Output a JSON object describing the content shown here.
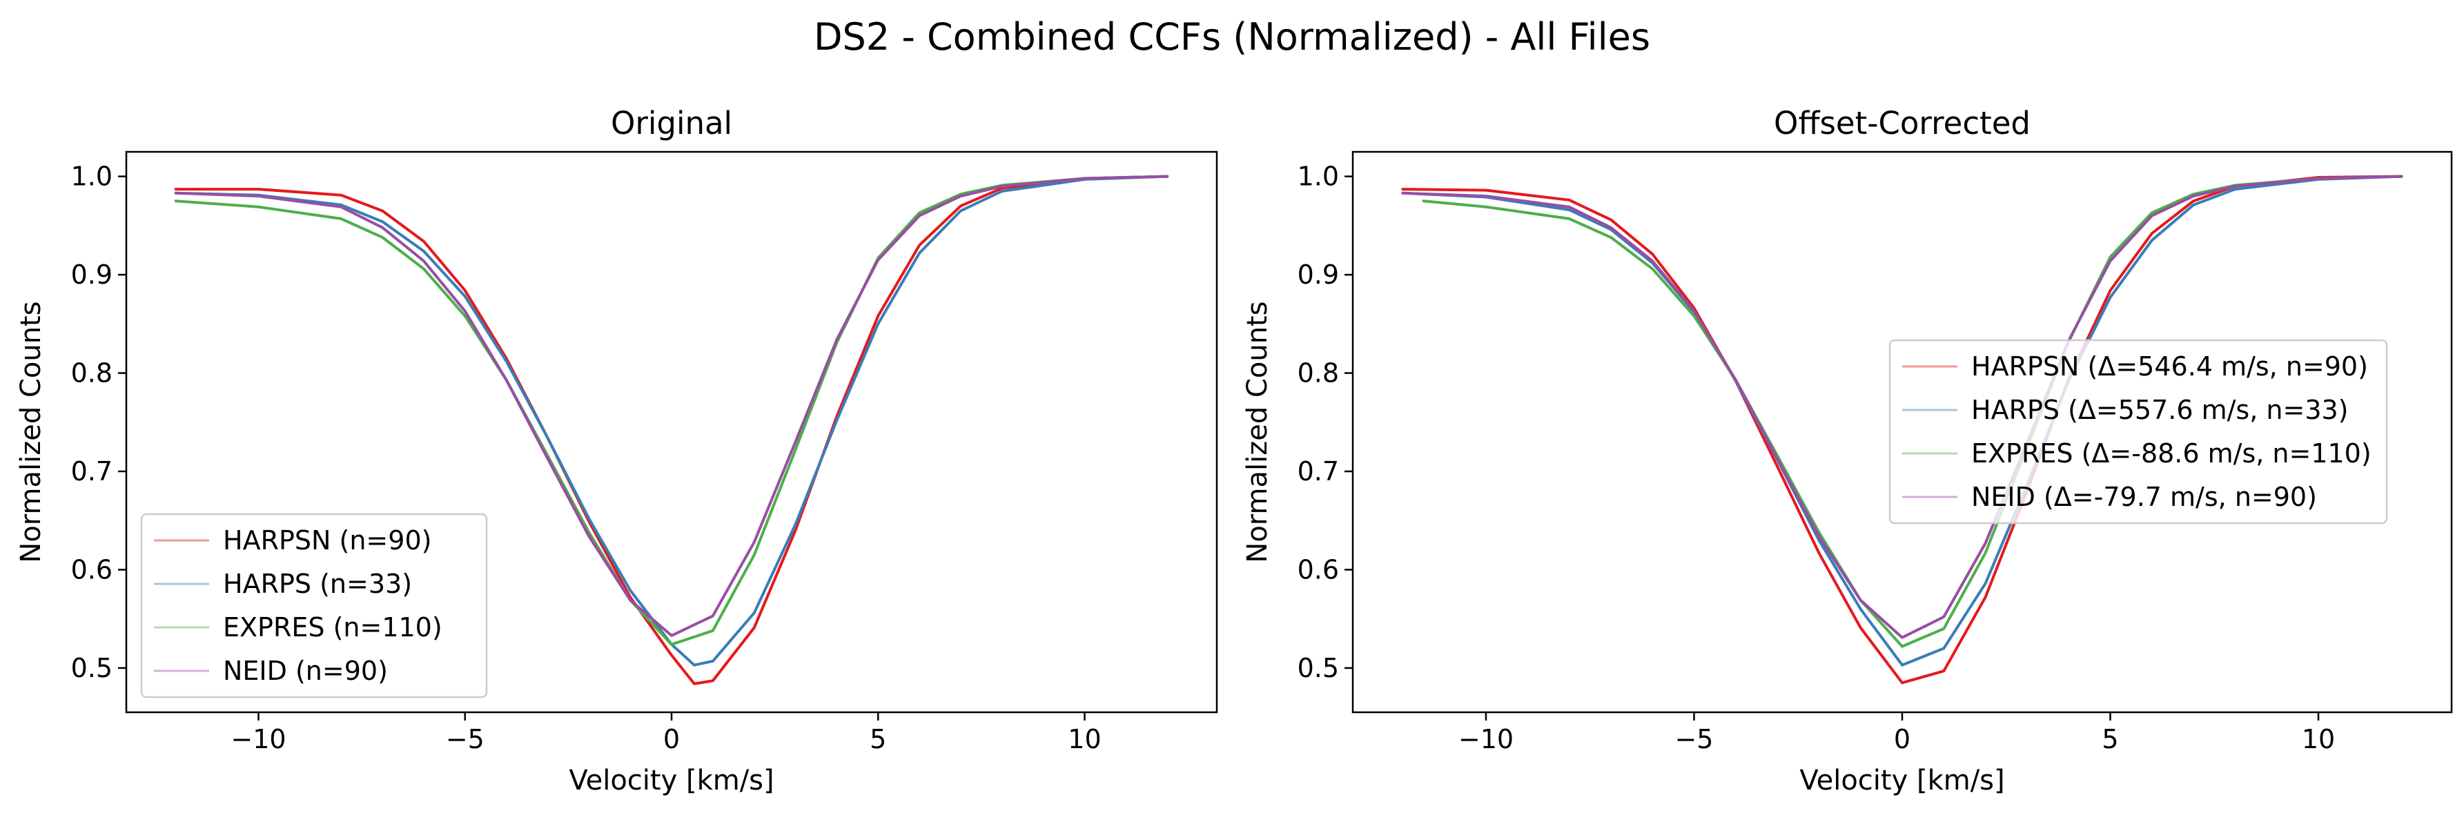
{
  "suptitle": "DS2 - Combined CCFs (Normalized) - All Files",
  "chart_data": [
    {
      "type": "line",
      "title": "Original",
      "xlabel": "Velocity [km/s]",
      "ylabel": "Normalized Counts",
      "xlim": [
        -13.2,
        13.2
      ],
      "ylim": [
        0.455,
        1.025
      ],
      "xticks": [
        -10,
        -5,
        0,
        5,
        10
      ],
      "xtick_labels": [
        "−10",
        "−5",
        "0",
        "5",
        "10"
      ],
      "yticks": [
        0.5,
        0.6,
        0.7,
        0.8,
        0.9,
        1.0
      ],
      "ytick_labels": [
        "0.5",
        "0.6",
        "0.7",
        "0.8",
        "0.9",
        "1.0"
      ],
      "grid": false,
      "legend_position": "lower-left",
      "series": [
        {
          "name": "HARPSN (n=90)",
          "color": "#e41a1c",
          "x": [
            -12,
            -10,
            -8,
            -7,
            -6,
            -5,
            -4,
            -3,
            -2,
            -1,
            0,
            0.55,
            1,
            2,
            3,
            4,
            5,
            6,
            7,
            8,
            10,
            12
          ],
          "y": [
            0.987,
            0.987,
            0.981,
            0.965,
            0.934,
            0.884,
            0.815,
            0.734,
            0.649,
            0.572,
            0.513,
            0.484,
            0.487,
            0.541,
            0.64,
            0.756,
            0.858,
            0.93,
            0.97,
            0.988,
            0.998,
            1.0
          ]
        },
        {
          "name": "HARPS (n=33)",
          "color": "#377eb8",
          "x": [
            -12,
            -10,
            -8,
            -7,
            -6,
            -5,
            -4,
            -3,
            -2,
            -1,
            0,
            0.55,
            1,
            2,
            3,
            4,
            5,
            6,
            7,
            8,
            10,
            12
          ],
          "y": [
            0.983,
            0.981,
            0.971,
            0.954,
            0.924,
            0.878,
            0.812,
            0.734,
            0.652,
            0.579,
            0.524,
            0.503,
            0.507,
            0.556,
            0.646,
            0.752,
            0.85,
            0.922,
            0.965,
            0.985,
            0.997,
            1.0
          ]
        },
        {
          "name": "EXPRES (n=110)",
          "color": "#4daf4a",
          "x": [
            -12,
            -10,
            -8,
            -7,
            -6,
            -5,
            -4,
            -3,
            -2,
            -1,
            0,
            1,
            2,
            3,
            4,
            5,
            6,
            7,
            8,
            10,
            12
          ],
          "y": [
            0.975,
            0.969,
            0.957,
            0.938,
            0.906,
            0.858,
            0.793,
            0.716,
            0.638,
            0.569,
            0.524,
            0.538,
            0.615,
            0.722,
            0.831,
            0.917,
            0.963,
            0.982,
            0.991,
            0.998,
            1.0
          ]
        },
        {
          "name": "NEID (n=90)",
          "color": "#984ea3",
          "x": [
            -12,
            -10,
            -8,
            -7,
            -6,
            -5,
            -4,
            -3,
            -2,
            -1,
            0,
            1,
            2,
            3,
            4,
            5,
            6,
            7,
            8,
            10,
            12
          ],
          "y": [
            0.983,
            0.98,
            0.969,
            0.948,
            0.914,
            0.863,
            0.793,
            0.713,
            0.634,
            0.569,
            0.533,
            0.553,
            0.628,
            0.73,
            0.834,
            0.915,
            0.96,
            0.98,
            0.99,
            0.998,
            1.0
          ]
        }
      ]
    },
    {
      "type": "line",
      "title": "Offset-Corrected",
      "xlabel": "Velocity [km/s]",
      "ylabel": "Normalized Counts",
      "xlim": [
        -13.2,
        13.2
      ],
      "ylim": [
        0.455,
        1.025
      ],
      "xticks": [
        -10,
        -5,
        0,
        5,
        10
      ],
      "xtick_labels": [
        "−10",
        "−5",
        "0",
        "5",
        "10"
      ],
      "yticks": [
        0.5,
        0.6,
        0.7,
        0.8,
        0.9,
        1.0
      ],
      "ytick_labels": [
        "0.5",
        "0.6",
        "0.7",
        "0.8",
        "0.9",
        "1.0"
      ],
      "grid": false,
      "legend_position": "center-right",
      "series": [
        {
          "name": "HARPSN (Δ=546.4 m/s, n=90)",
          "color": "#e41a1c",
          "x": [
            -12,
            -10,
            -8,
            -7,
            -6,
            -5,
            -4,
            -3,
            -2,
            -1,
            0,
            1,
            2,
            3,
            4,
            5,
            6,
            7,
            8,
            10,
            12
          ],
          "y": [
            0.987,
            0.986,
            0.976,
            0.956,
            0.921,
            0.866,
            0.792,
            0.705,
            0.617,
            0.541,
            0.485,
            0.497,
            0.572,
            0.68,
            0.794,
            0.884,
            0.942,
            0.975,
            0.99,
            0.999,
            1.0
          ]
        },
        {
          "name": "HARPS (Δ=557.6 m/s, n=33)",
          "color": "#377eb8",
          "x": [
            -12,
            -10,
            -8,
            -7,
            -6,
            -5,
            -4,
            -3,
            -2,
            -1,
            0,
            1,
            2,
            3,
            4,
            5,
            6,
            7,
            8,
            10,
            12
          ],
          "y": [
            0.983,
            0.979,
            0.966,
            0.946,
            0.912,
            0.862,
            0.792,
            0.712,
            0.63,
            0.56,
            0.503,
            0.52,
            0.586,
            0.686,
            0.792,
            0.877,
            0.935,
            0.971,
            0.987,
            0.997,
            1.0
          ]
        },
        {
          "name": "EXPRES (Δ=-88.6 m/s, n=110)",
          "color": "#4daf4a",
          "x": [
            -11.5,
            -10,
            -8,
            -7,
            -6,
            -5,
            -4,
            -3,
            -2,
            -1,
            0,
            1,
            2,
            3,
            4,
            5,
            6,
            7,
            8,
            10,
            12
          ],
          "y": [
            0.975,
            0.969,
            0.957,
            0.938,
            0.906,
            0.858,
            0.793,
            0.716,
            0.638,
            0.569,
            0.522,
            0.54,
            0.617,
            0.724,
            0.832,
            0.918,
            0.963,
            0.982,
            0.991,
            0.998,
            1.0
          ]
        },
        {
          "name": "NEID (Δ=-79.7 m/s, n=90)",
          "color": "#984ea3",
          "x": [
            -12,
            -10,
            -8,
            -7,
            -6,
            -5,
            -4,
            -3,
            -2,
            -1,
            0,
            1,
            2,
            3,
            4,
            5,
            6,
            7,
            8,
            10,
            12
          ],
          "y": [
            0.983,
            0.98,
            0.969,
            0.948,
            0.914,
            0.863,
            0.793,
            0.713,
            0.634,
            0.569,
            0.531,
            0.552,
            0.627,
            0.729,
            0.833,
            0.914,
            0.96,
            0.98,
            0.99,
            0.998,
            1.0
          ]
        }
      ]
    }
  ]
}
